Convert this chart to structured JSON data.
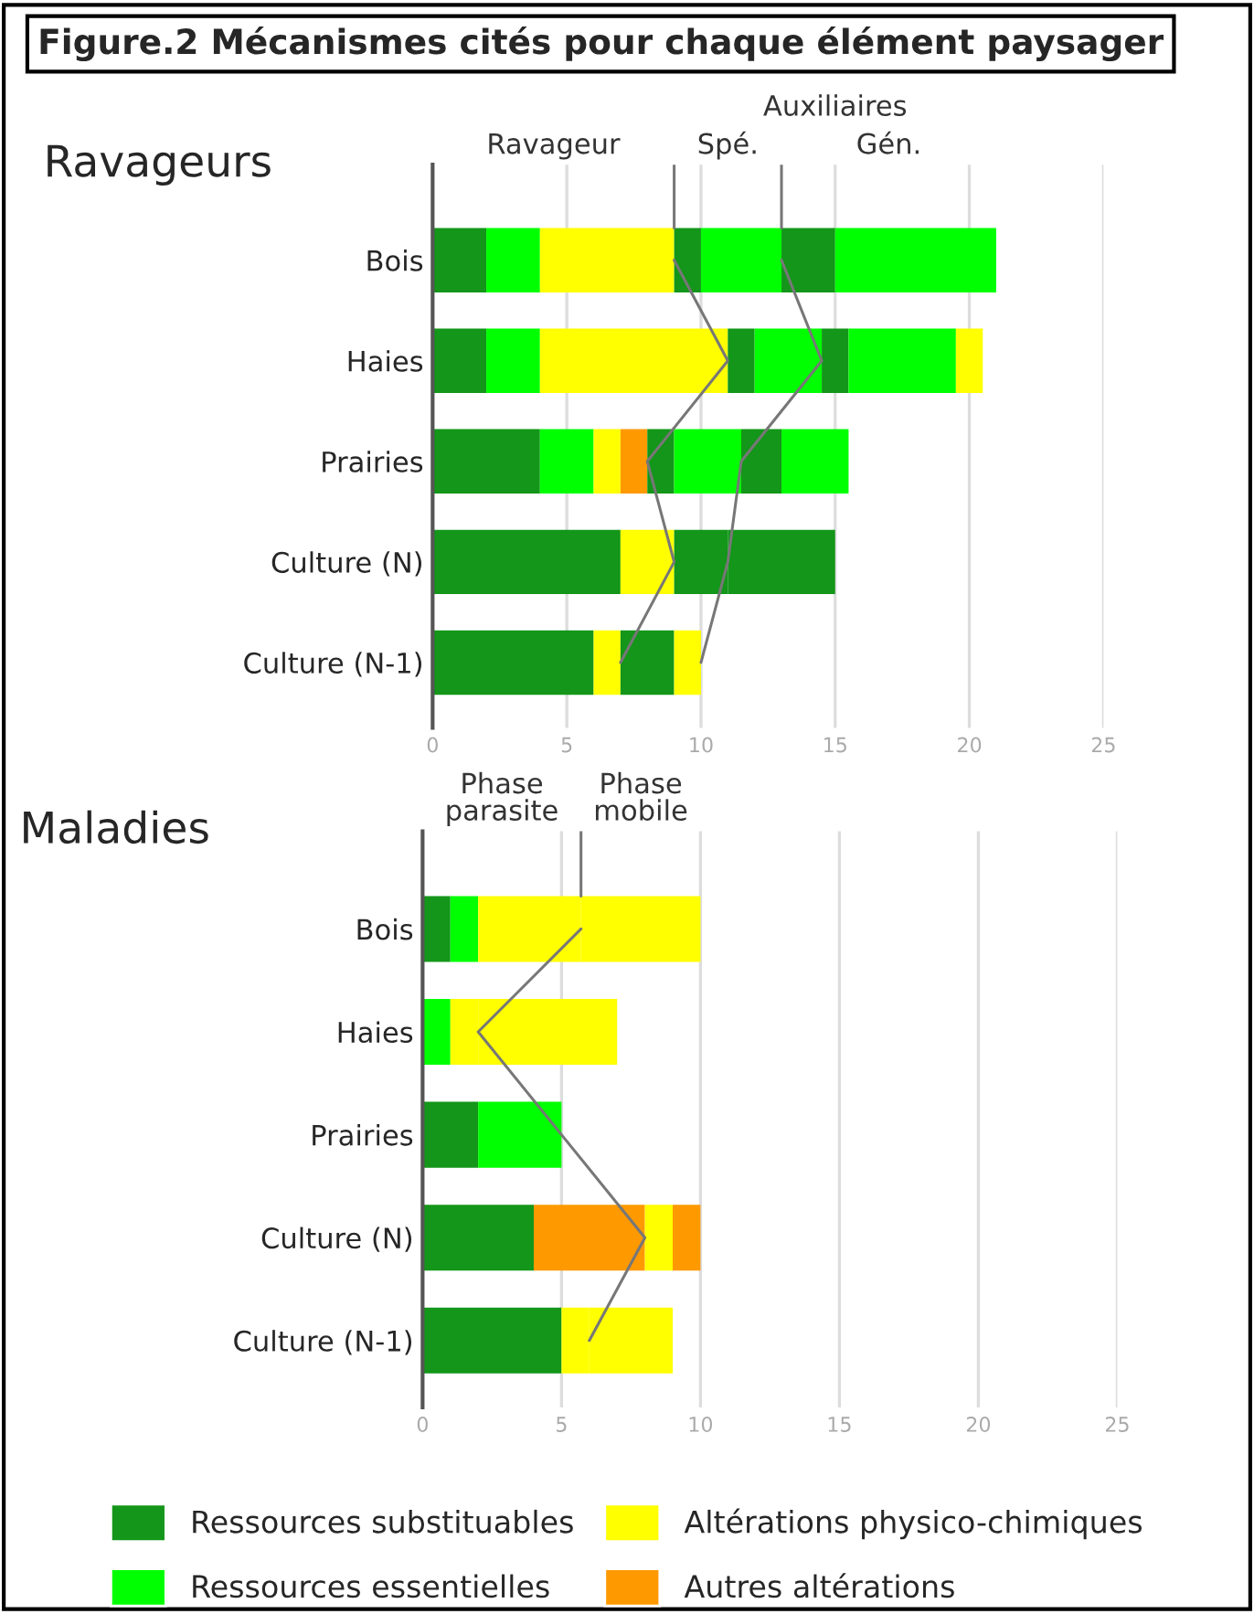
{
  "chart_data": [
    {
      "type": "bar",
      "orientation": "horizontal",
      "stacked": true,
      "title": "Figure.2 Mécanismes cités pour chaque élément paysager",
      "subtitle": "Ravageurs",
      "categories": [
        "Bois",
        "Haies",
        "Prairies",
        "Culture (N)",
        "Culture (N-1)"
      ],
      "xlim": [
        0,
        25
      ],
      "xticks": [
        0,
        5,
        10,
        15,
        20,
        25
      ],
      "grid": "x",
      "annotations": [
        "Ravageur",
        "Spé.",
        "Gén.",
        "Auxiliaires"
      ],
      "series": [
        {
          "color": "#139619",
          "values": [
            2,
            2,
            4,
            7,
            6
          ]
        },
        {
          "color": "#00ff00",
          "values": [
            2,
            2,
            2,
            null,
            null
          ]
        },
        {
          "color": "#ffff00",
          "values": [
            5,
            7,
            1,
            2,
            1
          ]
        },
        {
          "color": "#ff9900",
          "values": [
            null,
            null,
            1,
            null,
            null
          ]
        },
        {
          "color": "#139619",
          "values": [
            1,
            1,
            1,
            2,
            2
          ]
        },
        {
          "color": "#00ff00",
          "values": [
            3,
            2.5,
            2.5,
            null,
            null
          ]
        },
        {
          "color": "#ffff00",
          "values": [
            null,
            null,
            null,
            null,
            1
          ]
        },
        {
          "color": "#139619",
          "values": [
            2,
            1,
            1.5,
            4,
            null
          ]
        },
        {
          "color": "#00ff00",
          "values": [
            6,
            4,
            2.5,
            null,
            null
          ]
        },
        {
          "color": "#ffff00",
          "values": [
            null,
            1,
            null,
            null,
            null
          ]
        },
        {
          "type": "line",
          "color": "#777777",
          "values": [
            9,
            11,
            8,
            9,
            7
          ]
        },
        {
          "type": "line",
          "color": "#777777",
          "values": [
            13,
            14.5,
            11.5,
            11,
            10
          ]
        }
      ]
    },
    {
      "type": "bar",
      "orientation": "horizontal",
      "stacked": true,
      "title": "Maladies",
      "categories": [
        "Bois",
        "Haies",
        "Prairies",
        "Culture (N)",
        "Culture (N-1)"
      ],
      "xlim": [
        0,
        25
      ],
      "xticks": [
        0,
        5,
        10,
        15,
        20,
        25
      ],
      "grid": "x",
      "legend": "bottom",
      "annotations": [
        "Phase\nparasite",
        "Phase\nmobile"
      ],
      "series": [
        {
          "name": "Ressources substituables",
          "color": "#139619",
          "values": [
            1,
            null,
            2,
            4,
            5
          ]
        },
        {
          "name": "Ressources essentielles",
          "color": "#00ff00",
          "values": [
            1,
            1,
            3,
            null,
            null
          ]
        },
        {
          "name": "Altérations physico-chimiques",
          "color": "#ffff00",
          "values": [
            3.7,
            1,
            null,
            null,
            1
          ]
        },
        {
          "name": "Autres altérations",
          "color": "#ff9900",
          "values": [
            null,
            null,
            null,
            4,
            null
          ]
        },
        {
          "color": "#ffff00",
          "values": [
            4.3,
            5,
            null,
            1,
            3
          ]
        },
        {
          "color": "#ff9900",
          "values": [
            null,
            null,
            null,
            1,
            null
          ]
        },
        {
          "type": "line",
          "color": "#777777",
          "values": [
            5.7,
            2,
            5,
            8,
            6
          ]
        }
      ]
    }
  ]
}
